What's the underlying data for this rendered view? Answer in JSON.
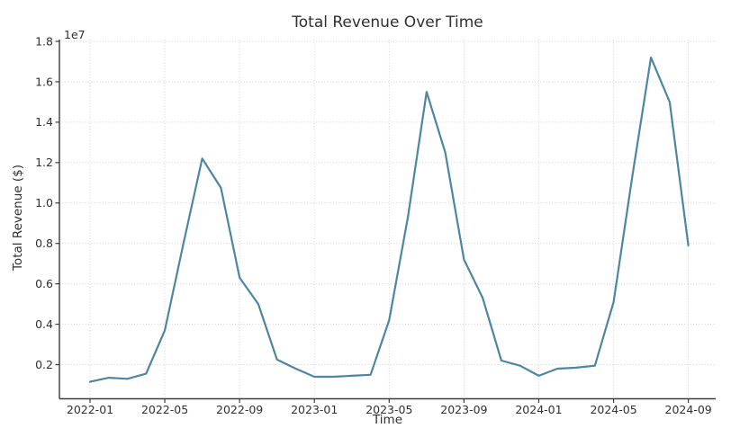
{
  "figure": {
    "title": "Total Revenue Over Time",
    "xlabel": "Time",
    "ylabel": "Total Revenue ($)",
    "y_offset_label": "1e7"
  },
  "chart_data": {
    "type": "line",
    "title": "Total Revenue Over Time",
    "xlabel": "Time",
    "ylabel": "Total Revenue ($)",
    "y_axis_multiplier_label": "1e7",
    "x": [
      "2022-01",
      "2022-02",
      "2022-03",
      "2022-04",
      "2022-05",
      "2022-06",
      "2022-07",
      "2022-08",
      "2022-09",
      "2022-10",
      "2022-11",
      "2022-12",
      "2023-01",
      "2023-02",
      "2023-03",
      "2023-04",
      "2023-05",
      "2023-06",
      "2023-07",
      "2023-08",
      "2023-09",
      "2023-10",
      "2023-11",
      "2023-12",
      "2024-01",
      "2024-02",
      "2024-03",
      "2024-04",
      "2024-05",
      "2024-06",
      "2024-07",
      "2024-08",
      "2024-09"
    ],
    "series": [
      {
        "name": "Total Revenue",
        "values": [
          1150000,
          1350000,
          1300000,
          1550000,
          3700000,
          8000000,
          12200000,
          10750000,
          6300000,
          5000000,
          2250000,
          1800000,
          1400000,
          1400000,
          1450000,
          1500000,
          4200000,
          9300000,
          15500000,
          12500000,
          7200000,
          5300000,
          2200000,
          1950000,
          1450000,
          1800000,
          1850000,
          1950000,
          5100000,
          11300000,
          17200000,
          15000000,
          7900000
        ]
      }
    ],
    "x_tick_labels": [
      "2022-01",
      "2022-05",
      "2022-09",
      "2023-01",
      "2023-05",
      "2023-09",
      "2024-01",
      "2024-05",
      "2024-09"
    ],
    "x_tick_indices": [
      0,
      4,
      8,
      12,
      16,
      20,
      24,
      28,
      32
    ],
    "y_ticks": [
      2000000,
      4000000,
      6000000,
      8000000,
      10000000,
      12000000,
      14000000,
      16000000,
      18000000
    ],
    "y_tick_labels": [
      "0.2",
      "0.4",
      "0.6",
      "0.8",
      "1.0",
      "1.2",
      "1.4",
      "1.6",
      "1.8"
    ],
    "ylim": [
      310000,
      18090000
    ],
    "grid": true,
    "grid_style": "dotted",
    "legend": false,
    "line_color": "#4d86a0",
    "text_color": "#303030",
    "grid_color": "#cccccc",
    "spine_color": "#3b3b3b"
  }
}
